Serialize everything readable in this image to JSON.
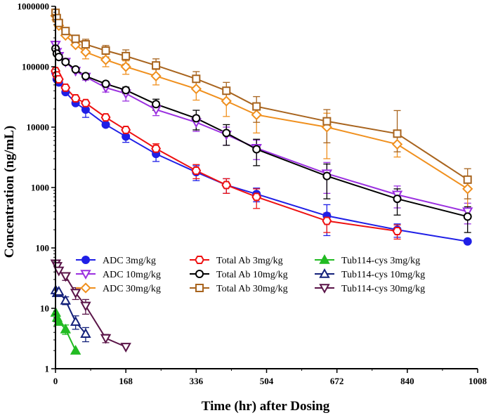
{
  "chart_data": {
    "type": "line",
    "title": "",
    "xlabel": "Time (hr) after Dosing",
    "ylabel": "Concentration (ng/mL)",
    "xlim": [
      0,
      1008
    ],
    "ylim": [
      1,
      1000000
    ],
    "yscale": "log",
    "xticks": [
      0,
      168,
      336,
      504,
      672,
      840,
      1008
    ],
    "yticks": [
      1,
      10,
      100,
      1000,
      10000,
      100000,
      1000000
    ],
    "grid": false,
    "legend_position": "lower-center",
    "series": [
      {
        "name": "ADC 3mg/kg",
        "color": "#1f1fe6",
        "marker": "circle",
        "fill": true,
        "x": [
          0.08,
          3,
          8,
          24,
          48,
          72,
          120,
          168,
          240,
          336,
          408,
          480,
          648,
          816,
          984
        ],
        "y": [
          80000,
          62000,
          55000,
          38000,
          25000,
          19500,
          11000,
          7000,
          3600,
          1800,
          1100,
          780,
          340,
          200,
          128
        ],
        "err": [
          0,
          0,
          0,
          0,
          0,
          5000,
          0,
          1400,
          900,
          500,
          300,
          200,
          180,
          50,
          0
        ]
      },
      {
        "name": "ADC 10mg/kg",
        "color": "#9b30e0",
        "marker": "triangle-down",
        "fill": false,
        "x": [
          0.08,
          3,
          8,
          24,
          48,
          72,
          120,
          168,
          240,
          336,
          408,
          480,
          648,
          816,
          984
        ],
        "y": [
          230000,
          175000,
          150000,
          120000,
          85000,
          68000,
          45000,
          36000,
          19500,
          12000,
          7500,
          4500,
          1700,
          760,
          400
        ],
        "err": [
          0,
          0,
          0,
          0,
          0,
          8000,
          7000,
          9000,
          4000,
          3500,
          2500,
          1600,
          900,
          300,
          150
        ]
      },
      {
        "name": "ADC 30mg/kg",
        "color": "#f0901e",
        "marker": "diamond",
        "fill": false,
        "x": [
          0.08,
          3,
          8,
          24,
          48,
          72,
          120,
          168,
          240,
          336,
          408,
          480,
          648,
          816,
          984
        ],
        "y": [
          700000,
          600000,
          480000,
          330000,
          230000,
          175000,
          130000,
          100000,
          70000,
          43000,
          27000,
          16000,
          10000,
          5200,
          950
        ],
        "err": [
          0,
          0,
          0,
          0,
          0,
          40000,
          30000,
          25000,
          20000,
          15000,
          12000,
          8000,
          7000,
          2000,
          500
        ]
      },
      {
        "name": "Total Ab 3mg/kg",
        "color": "#ee1111",
        "marker": "hexagon",
        "fill": false,
        "x": [
          0.08,
          3,
          8,
          24,
          48,
          72,
          120,
          168,
          240,
          336,
          408,
          480,
          648,
          816
        ],
        "y": [
          85000,
          72000,
          62000,
          45000,
          30000,
          25000,
          14500,
          9000,
          4400,
          1900,
          1100,
          700,
          280,
          190
        ],
        "err": [
          0,
          0,
          0,
          0,
          0,
          0,
          0,
          0,
          900,
          500,
          300,
          250,
          100,
          50
        ]
      },
      {
        "name": "Total Ab 10mg/kg",
        "color": "#000000",
        "marker": "circle",
        "fill": false,
        "x": [
          0.08,
          3,
          8,
          24,
          48,
          72,
          120,
          168,
          240,
          336,
          408,
          480,
          648,
          816,
          984
        ],
        "y": [
          200000,
          165000,
          145000,
          120000,
          90000,
          70000,
          52000,
          41000,
          24000,
          14000,
          8000,
          4300,
          1550,
          650,
          330
        ],
        "err": [
          0,
          0,
          0,
          0,
          0,
          5000,
          0,
          5000,
          5000,
          5000,
          3000,
          2000,
          900,
          300,
          150
        ]
      },
      {
        "name": "Total Ab 30mg/kg",
        "color": "#a8641e",
        "marker": "square",
        "fill": false,
        "x": [
          0.08,
          3,
          8,
          24,
          48,
          72,
          120,
          168,
          240,
          336,
          408,
          480,
          648,
          816,
          984
        ],
        "y": [
          780000,
          640000,
          530000,
          390000,
          290000,
          235000,
          185000,
          150000,
          105000,
          63000,
          40000,
          22000,
          12500,
          7800,
          1350
        ],
        "err": [
          0,
          0,
          0,
          0,
          0,
          50000,
          40000,
          40000,
          30000,
          20000,
          15000,
          10000,
          7000,
          11000,
          700
        ]
      },
      {
        "name": "Tub114-cys 3mg/kg",
        "color": "#22bb22",
        "marker": "triangle-up",
        "fill": true,
        "x": [
          0.5,
          4,
          8,
          24,
          48
        ],
        "y": [
          8.5,
          7,
          6,
          4.5,
          2
        ],
        "err": [
          0,
          0,
          0,
          0.8,
          0
        ]
      },
      {
        "name": "Tub114-cys 10mg/kg",
        "color": "#13207a",
        "marker": "triangle-up",
        "fill": false,
        "x": [
          0.5,
          4,
          8,
          24,
          48,
          72
        ],
        "y": [
          20,
          18,
          19,
          13.5,
          6,
          3.8
        ],
        "err": [
          0,
          0,
          0,
          2,
          1.5,
          1
        ]
      },
      {
        "name": "Tub114-cys 30mg/kg",
        "color": "#5a1448",
        "marker": "triangle-down",
        "fill": false,
        "x": [
          0.5,
          4,
          8,
          24,
          48,
          72,
          120,
          168
        ],
        "y": [
          55,
          50,
          42,
          34,
          18,
          11,
          3.2,
          2.3
        ],
        "err": [
          0,
          0,
          0,
          5,
          4,
          3,
          0.5,
          0
        ]
      }
    ]
  }
}
